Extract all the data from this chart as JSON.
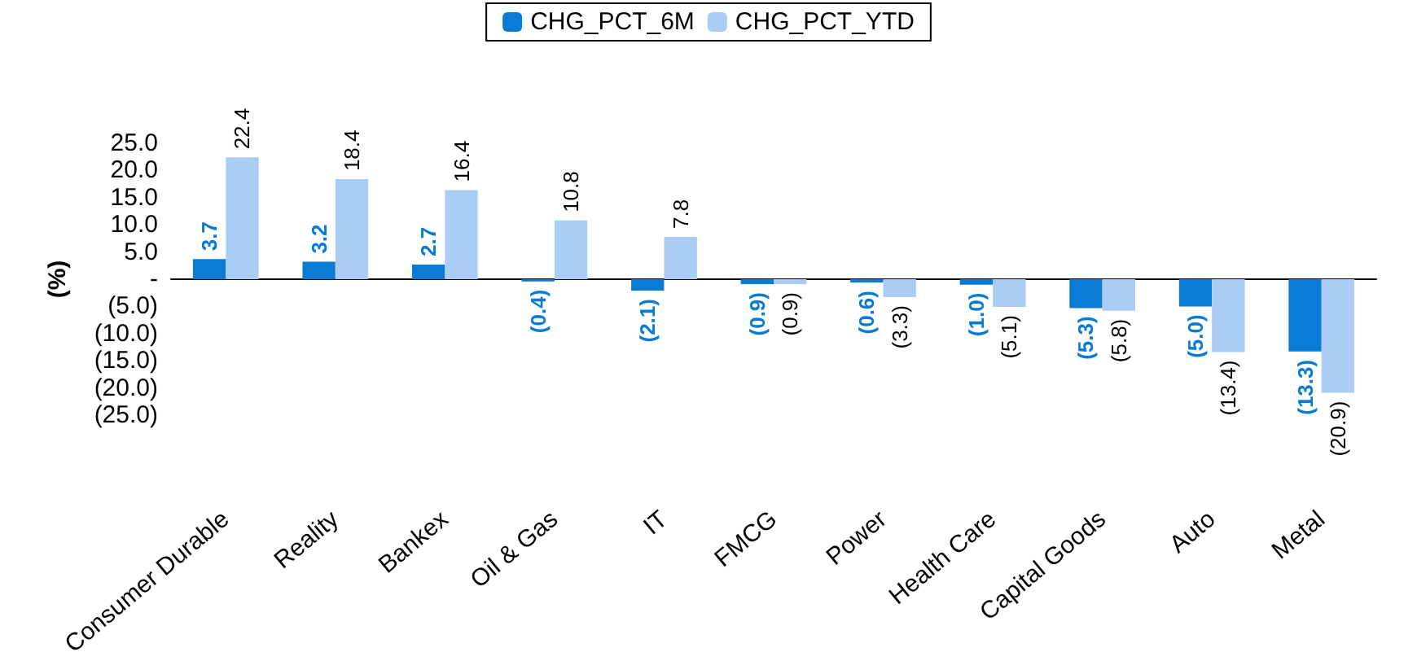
{
  "chart_data": {
    "type": "bar",
    "ylabel": "(%)",
    "legend": "top",
    "categories": [
      "Consumer Durable",
      "Reality",
      "Bankex",
      "Oil & Gas",
      "IT",
      "FMCG",
      "Power",
      "Health Care",
      "Capital Goods",
      "Auto",
      "Metal"
    ],
    "series": [
      {
        "name": "CHG_PCT_6M",
        "color": "#0a7bd4",
        "values": [
          3.7,
          3.2,
          2.7,
          -0.4,
          -2.1,
          -0.9,
          -0.6,
          -1.0,
          -5.3,
          -5.0,
          -13.3
        ],
        "value_labels": [
          "3.7",
          "3.2",
          "2.7",
          "(0.4)",
          "(2.1)",
          "(0.9)",
          "(0.6)",
          "(1.0)",
          "(5.3)",
          "(5.0)",
          "(13.3)"
        ]
      },
      {
        "name": "CHG_PCT_YTD",
        "color": "#a9cdf5",
        "values": [
          22.4,
          18.4,
          16.4,
          10.8,
          7.8,
          -0.9,
          -3.3,
          -5.1,
          -5.8,
          -13.4,
          -20.9
        ],
        "value_labels": [
          "22.4",
          "18.4",
          "16.4",
          "10.8",
          "7.8",
          "(0.9)",
          "(3.3)",
          "(5.1)",
          "(5.8)",
          "(13.4)",
          "(20.9)"
        ]
      }
    ],
    "ylim": [
      -25,
      25
    ],
    "yticks": [
      {
        "value": 25,
        "label": "25.0"
      },
      {
        "value": 20,
        "label": "20.0"
      },
      {
        "value": 15,
        "label": "15.0"
      },
      {
        "value": 10,
        "label": "10.0"
      },
      {
        "value": 5,
        "label": "5.0"
      },
      {
        "value": 0,
        "label": "-"
      },
      {
        "value": -5,
        "label": "(5.0)"
      },
      {
        "value": -10,
        "label": "(10.0)"
      },
      {
        "value": -15,
        "label": "(15.0)"
      },
      {
        "value": -20,
        "label": "(20.0)"
      },
      {
        "value": -25,
        "label": "(25.0)"
      }
    ]
  }
}
